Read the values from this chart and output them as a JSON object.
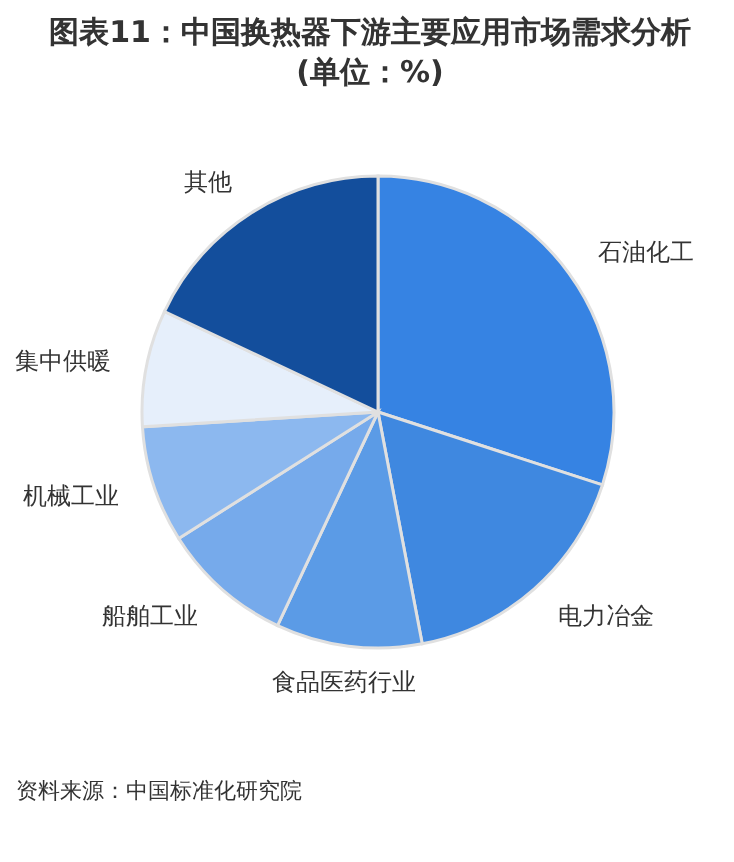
{
  "chart_data": {
    "type": "pie",
    "title": "图表11：中国换热器下游主要应用市场需求分析(单位：%)",
    "categories": [
      "石油化工",
      "电力冶金",
      "食品医药行业",
      "船舶工业",
      "机械工业",
      "集中供暖",
      "其他"
    ],
    "values": [
      30,
      17,
      10,
      9,
      8,
      8,
      18
    ],
    "colors": [
      "#3683e3",
      "#3f88e0",
      "#5b9be6",
      "#76aaeb",
      "#8cb8ef",
      "#e6effb",
      "#134e9c"
    ],
    "annotations": [
      "资料来源：中国标准化研究院"
    ]
  }
}
